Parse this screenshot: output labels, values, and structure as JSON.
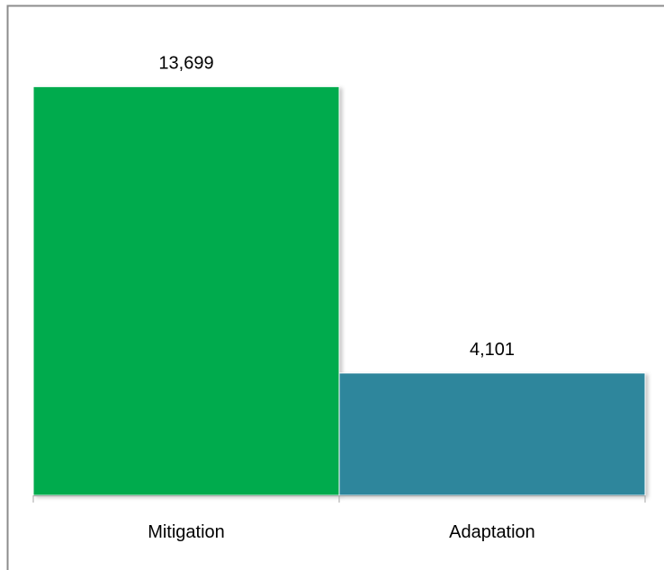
{
  "chart_data": {
    "type": "bar",
    "categories": [
      "Mitigation",
      "Adaptation"
    ],
    "values": [
      13699,
      4101
    ],
    "data_labels": [
      "13,699",
      "4,101"
    ],
    "title": "",
    "xlabel": "",
    "ylabel": "",
    "ylim": [
      0,
      16000
    ],
    "grid": false,
    "legend": "none",
    "colors": {
      "bars": [
        "#00ab4e",
        "#2e869c"
      ],
      "frame": "#8c8c8c",
      "axis": "#a6a6a6",
      "text": "#000000",
      "bar_edge": "#ffffff"
    }
  }
}
